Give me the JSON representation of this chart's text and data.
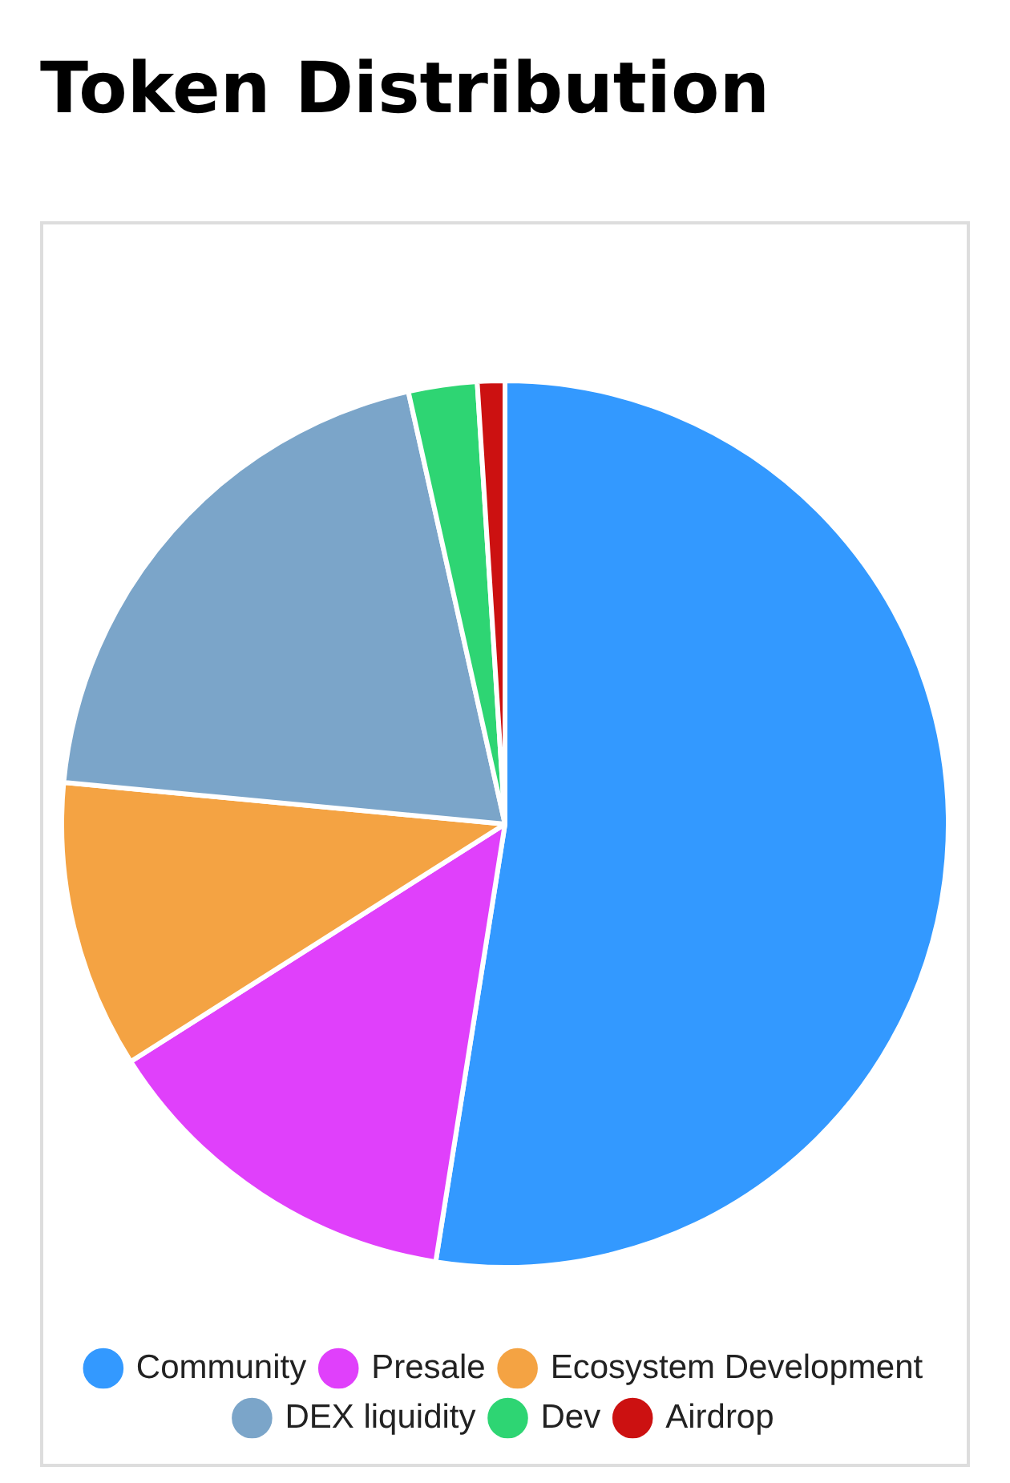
{
  "chart_data": {
    "type": "pie",
    "title": "Token Distribution",
    "categories": [
      "Community",
      "Presale",
      "Ecosystem Development",
      "DEX liquidity",
      "Dev",
      "Airdrop"
    ],
    "values": [
      52.5,
      13.5,
      10.5,
      20,
      2.5,
      1
    ],
    "colors": [
      "#3399ff",
      "#e040fb",
      "#f4a343",
      "#7ba5c9",
      "#2ed573",
      "#cc1111"
    ],
    "legend": "bottom"
  }
}
